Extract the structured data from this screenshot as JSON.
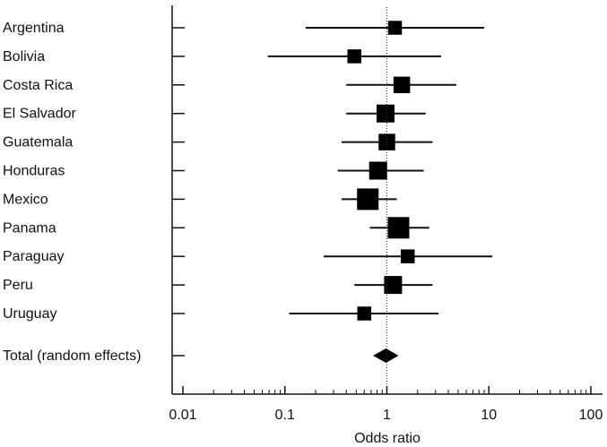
{
  "chart_data": {
    "type": "forest",
    "xscale": "log",
    "xlim": [
      0.01,
      100
    ],
    "xlabel": "Odds ratio",
    "reference_line": 1,
    "x_ticks": [
      0.01,
      0.1,
      1,
      10,
      100
    ],
    "x_tick_labels": [
      "0.01",
      "0.1",
      "1",
      "10",
      "100"
    ],
    "studies": [
      {
        "label": "Argentina",
        "or": 1.2,
        "lower": 0.16,
        "upper": 9.0,
        "weight": 0.55
      },
      {
        "label": "Bolivia",
        "or": 0.48,
        "lower": 0.068,
        "upper": 3.4,
        "weight": 0.55
      },
      {
        "label": "Costa Rica",
        "or": 1.4,
        "lower": 0.4,
        "upper": 4.8,
        "weight": 0.85
      },
      {
        "label": "El Salvador",
        "or": 0.97,
        "lower": 0.4,
        "upper": 2.4,
        "weight": 1.0
      },
      {
        "label": "Guatemala",
        "or": 1.0,
        "lower": 0.36,
        "upper": 2.8,
        "weight": 0.85
      },
      {
        "label": "Honduras",
        "or": 0.82,
        "lower": 0.33,
        "upper": 2.3,
        "weight": 1.0
      },
      {
        "label": "Mexico",
        "or": 0.65,
        "lower": 0.36,
        "upper": 1.25,
        "weight": 1.4
      },
      {
        "label": "Panama",
        "or": 1.3,
        "lower": 0.68,
        "upper": 2.6,
        "weight": 1.4
      },
      {
        "label": "Paraguay",
        "or": 1.6,
        "lower": 0.24,
        "upper": 10.8,
        "weight": 0.55
      },
      {
        "label": "Peru",
        "or": 1.15,
        "lower": 0.48,
        "upper": 2.8,
        "weight": 1.0
      },
      {
        "label": "Uruguay",
        "or": 0.6,
        "lower": 0.11,
        "upper": 3.2,
        "weight": 0.55
      }
    ],
    "total": {
      "label": "Total (random effects)",
      "or": 0.98,
      "lower": 0.73,
      "upper": 1.3
    }
  }
}
